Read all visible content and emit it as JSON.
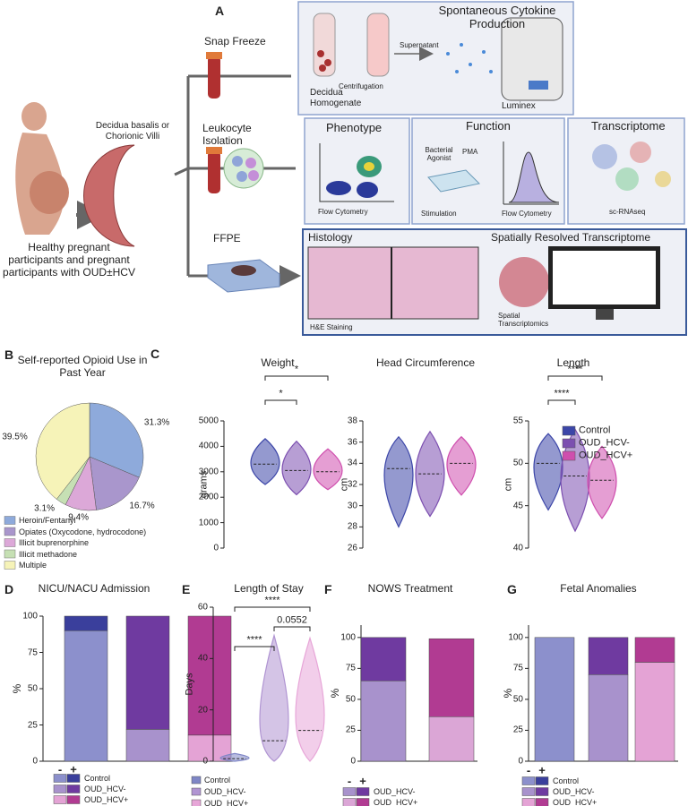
{
  "diagram": {
    "panel": "A",
    "snap_freeze": "Snap Freeze",
    "cytokine_title": "Spontaneous Cytokine Production",
    "centrifugation": "Centrifugation",
    "supernatant": "Supernatant",
    "decidua_homogenate": "Decidua Homogenate",
    "luminex": "Luminex",
    "tissue": "Decidua basalis or Chorionic Villi",
    "leukocyte_isolation": "Leukocyte Isolation",
    "phenotype": "Phenotype",
    "phenotype_method": "Flow Cytometry",
    "function": "Function",
    "bacterial_agonist": "Bacterial Agonist",
    "pma": "PMA",
    "stimulation": "Stimulation",
    "function_method": "Flow Cytometry",
    "transcriptome": "Transcriptome",
    "sc_rnaseq": "sc-RNAseq",
    "ffpe": "FFPE",
    "histology": "Histology",
    "he_staining": "H&E Staining",
    "spatial_title": "Spatially Resolved Transcriptome",
    "spatial_method": "Spatial Transcriptomics",
    "participants": "Healthy pregnant participants and pregnant participants with OUD±HCV"
  },
  "chart_data": [
    {
      "type": "pie",
      "panel": "B",
      "title": "Self-reported Opioid Use in Past Year",
      "categories": [
        "Heroin/Fentanyl",
        "Opiates (Oxycodone, hydrocodone)",
        "Illicit buprenorphine",
        "Illicit methadone",
        "Multiple"
      ],
      "values": [
        31.3,
        16.7,
        9.4,
        3.1,
        39.5
      ],
      "value_labels": [
        "31.3%",
        "16.7%",
        "9.4%",
        "3.1%",
        "39.5%"
      ],
      "colors": [
        "#8eaadb",
        "#a996cc",
        "#dca8d8",
        "#c6e0b4",
        "#f6f3b8"
      ]
    },
    {
      "type": "violin",
      "panel": "C",
      "legend": true,
      "series": [
        {
          "name": "Control",
          "color": "#3c46a8"
        },
        {
          "name": "OUD_HCV-",
          "color": "#7c4fb0"
        },
        {
          "name": "OUD_HCV+",
          "color": "#cf4fae"
        }
      ],
      "panels": [
        {
          "title": "Weight",
          "ylabel": "grams",
          "ylim": [
            0,
            5000
          ],
          "yticks": [
            0,
            1000,
            2000,
            3000,
            4000,
            5000
          ],
          "stats": [
            {
              "min": 2500,
              "median": 3300,
              "max": 4300
            },
            {
              "min": 2100,
              "median": 3050,
              "max": 4200
            },
            {
              "min": 2300,
              "median": 3000,
              "max": 3900
            }
          ],
          "annotations": [
            {
              "text": "*",
              "between": [
                "Control",
                "OUD_HCV-"
              ]
            },
            {
              "text": "*",
              "between": [
                "Control",
                "OUD_HCV+"
              ]
            }
          ]
        },
        {
          "title": "Head Circumference",
          "ylabel": "cm",
          "ylim": [
            26,
            38
          ],
          "yticks": [
            26,
            28,
            30,
            32,
            34,
            36,
            38
          ],
          "stats": [
            {
              "min": 28,
              "median": 33.5,
              "max": 36.5
            },
            {
              "min": 29,
              "median": 33,
              "max": 37
            },
            {
              "min": 31,
              "median": 34,
              "max": 36.5
            }
          ],
          "annotations": []
        },
        {
          "title": "Length",
          "ylabel": "cm",
          "ylim": [
            40,
            55
          ],
          "yticks": [
            40,
            45,
            50,
            55
          ],
          "stats": [
            {
              "min": 44.5,
              "median": 50,
              "max": 53.5
            },
            {
              "min": 42,
              "median": 48.5,
              "max": 54
            },
            {
              "min": 43.5,
              "median": 48,
              "max": 52
            }
          ],
          "annotations": [
            {
              "text": "****",
              "between": [
                "Control",
                "OUD_HCV-"
              ]
            },
            {
              "text": "****",
              "between": [
                "Control",
                "OUD_HCV+"
              ]
            }
          ]
        }
      ]
    },
    {
      "type": "stacked_bar",
      "panel": "D",
      "title": "NICU/NACU Admission",
      "ylabel": "%",
      "ylim": [
        0,
        100
      ],
      "yticks": [
        0,
        25,
        50,
        75,
        100
      ],
      "categories": [
        "Control",
        "OUD_HCV-",
        "OUD_HCV+"
      ],
      "series": [
        {
          "name": "-",
          "values": [
            90,
            22,
            18
          ],
          "colors": [
            "#8c90cc",
            "#a892cc",
            "#e4a3d5"
          ]
        },
        {
          "name": "+",
          "values": [
            10,
            78,
            82
          ],
          "colors": [
            "#3a3f9c",
            "#6f3aa0",
            "#b13b92"
          ]
        }
      ]
    },
    {
      "type": "violin",
      "panel": "E",
      "legend": true,
      "series": [
        {
          "name": "Control",
          "color": "#7f86c6"
        },
        {
          "name": "OUD_HCV-",
          "color": "#b094d2"
        },
        {
          "name": "OUD_HCV+",
          "color": "#e7a6d8"
        }
      ],
      "panels": [
        {
          "title": "Length of Stay",
          "ylabel": "Days",
          "ylim": [
            0,
            60
          ],
          "yticks": [
            0,
            20,
            40,
            60
          ],
          "stats": [
            {
              "min": 0,
              "median": 1,
              "max": 3
            },
            {
              "min": 0,
              "median": 8,
              "max": 49
            },
            {
              "min": 0,
              "median": 12,
              "max": 48
            }
          ],
          "annotations": [
            {
              "text": "****",
              "between": [
                "Control",
                "OUD_HCV-"
              ]
            },
            {
              "text": "0.0552",
              "between": [
                "OUD_HCV-",
                "OUD_HCV+"
              ]
            },
            {
              "text": "****",
              "between": [
                "Control",
                "OUD_HCV+"
              ]
            }
          ]
        }
      ]
    },
    {
      "type": "stacked_bar",
      "panel": "F",
      "title": "NOWS Treatment",
      "ylabel": "%",
      "ylim": [
        0,
        110
      ],
      "yticks": [
        0,
        25,
        50,
        75,
        100
      ],
      "categories": [
        "OUD_HCV-",
        "OUD_HCV+"
      ],
      "series": [
        {
          "name": "-",
          "values": [
            65,
            36
          ],
          "colors": [
            "#a892cc",
            "#dba6d6"
          ]
        },
        {
          "name": "+",
          "values": [
            35,
            63
          ],
          "colors": [
            "#6f3aa0",
            "#b13b92"
          ]
        }
      ]
    },
    {
      "type": "stacked_bar",
      "panel": "G",
      "title": "Fetal Anomalies",
      "ylabel": "%",
      "ylim": [
        0,
        110
      ],
      "yticks": [
        0,
        25,
        50,
        75,
        100
      ],
      "categories": [
        "Control",
        "OUD_HCV-",
        "OUD_HCV+"
      ],
      "series": [
        {
          "name": "-",
          "values": [
            100,
            70,
            80
          ],
          "colors": [
            "#8c90cc",
            "#a892cc",
            "#e4a3d5"
          ]
        },
        {
          "name": "+",
          "values": [
            0,
            30,
            20
          ],
          "colors": [
            "#3a3f9c",
            "#6f3aa0",
            "#b13b92"
          ]
        }
      ]
    }
  ]
}
